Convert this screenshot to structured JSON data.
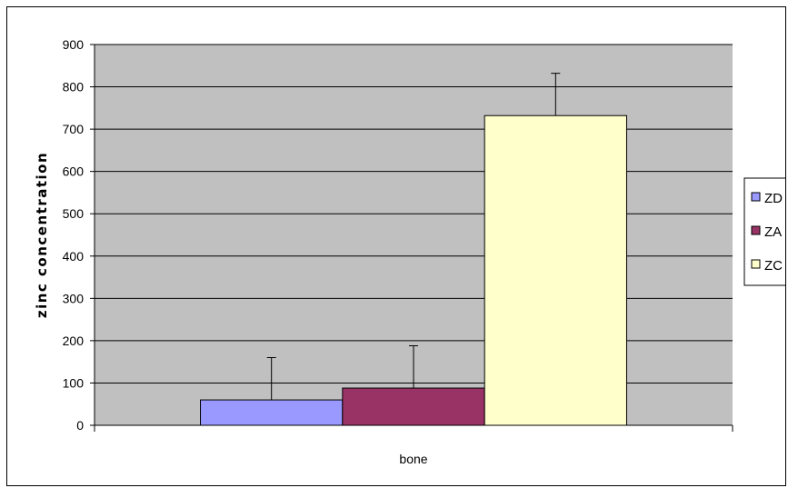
{
  "chart_data": {
    "type": "bar",
    "categories": [
      "bone"
    ],
    "series": [
      {
        "name": "ZD",
        "values": [
          60
        ],
        "error": [
          100
        ],
        "color": "#9999ff"
      },
      {
        "name": "ZA",
        "values": [
          88
        ],
        "error": [
          100
        ],
        "color": "#993366"
      },
      {
        "name": "ZC",
        "values": [
          732
        ],
        "error": [
          100
        ],
        "color": "#ffffcc"
      }
    ],
    "title": "",
    "xlabel": "",
    "ylabel": "zinc concentration",
    "ylim": [
      0,
      900
    ],
    "yticks": [
      0,
      100,
      200,
      300,
      400,
      500,
      600,
      700,
      800,
      900
    ],
    "grid": true,
    "plot_background": "#c0c0c0",
    "legend_position": "right"
  }
}
